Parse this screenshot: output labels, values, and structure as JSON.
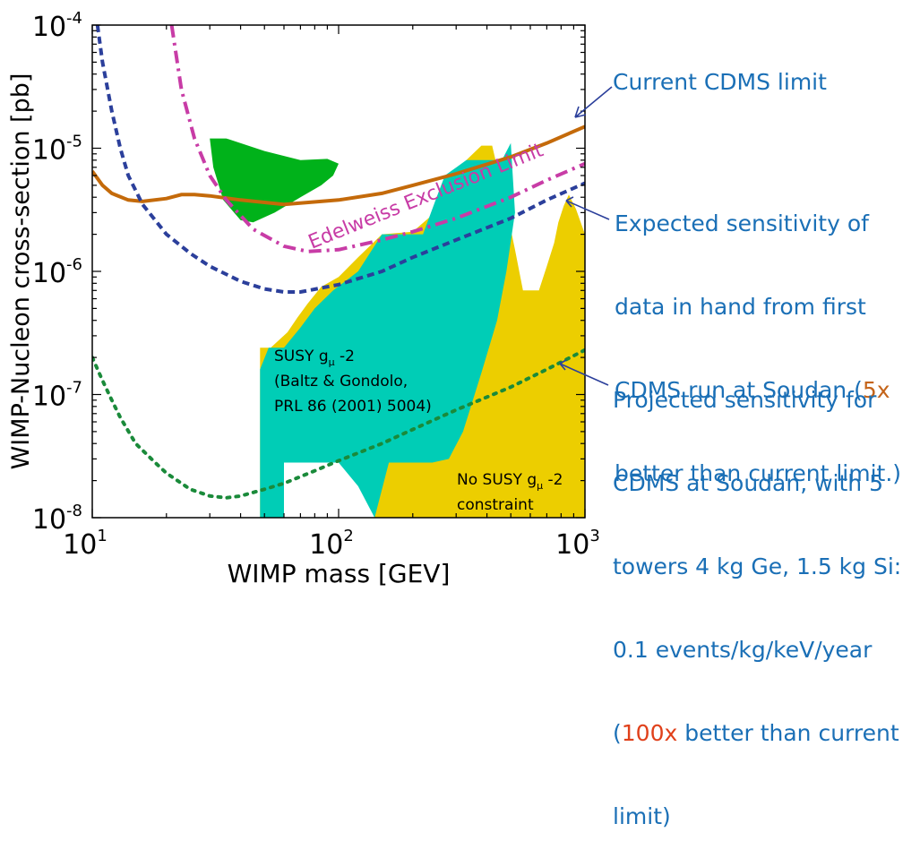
{
  "chart_data": {
    "type": "line",
    "xlabel": "WIMP mass [GEV]",
    "ylabel": "WIMP-Nucleon cross-section [pb]",
    "x_scale": "log",
    "y_scale": "log",
    "xlim": [
      10,
      1000
    ],
    "ylim": [
      1e-08,
      0.0001
    ],
    "x_ticks": [
      {
        "value": 10,
        "base": "10",
        "exp": "1"
      },
      {
        "value": 100,
        "base": "10",
        "exp": "2"
      },
      {
        "value": 1000,
        "base": "10",
        "exp": "3"
      }
    ],
    "y_ticks": [
      {
        "value": 1e-08,
        "base": "10",
        "exp": "-8"
      },
      {
        "value": 1e-07,
        "base": "10",
        "exp": "-7"
      },
      {
        "value": 1e-06,
        "base": "10",
        "exp": "-6"
      },
      {
        "value": 1e-05,
        "base": "10",
        "exp": "-5"
      },
      {
        "value": 0.0001,
        "base": "10",
        "exp": "-4"
      }
    ],
    "grid": false,
    "series": [
      {
        "style": "solid",
        "color": "#c46a0a",
        "x": [
          10,
          11,
          12,
          14,
          16,
          20,
          23,
          26,
          30,
          40,
          60,
          100,
          150,
          200,
          300,
          500,
          700,
          1000
        ],
        "y": [
          6.5e-06,
          5e-06,
          4.3e-06,
          3.8e-06,
          3.7e-06,
          3.9e-06,
          4.2e-06,
          4.2e-06,
          4.1e-06,
          3.8e-06,
          3.5e-06,
          3.8e-06,
          4.3e-06,
          5e-06,
          6.2e-06,
          8.5e-06,
          1.1e-05,
          1.5e-05
        ]
      },
      {
        "style": "dashdot",
        "color": "#c83ca6",
        "x": [
          21,
          23,
          26,
          30,
          35,
          45,
          60,
          75,
          100,
          150,
          200,
          300,
          500,
          700,
          1000
        ],
        "y": [
          0.0001,
          3e-05,
          1.2e-05,
          6e-06,
          3.8e-06,
          2.2e-06,
          1.6e-06,
          1.45e-06,
          1.5e-06,
          1.8e-06,
          2.1e-06,
          2.7e-06,
          4e-06,
          5.5e-06,
          7.5e-06
        ]
      },
      {
        "style": "dashed",
        "color": "#2b3f9b",
        "x": [
          10.5,
          11,
          12,
          13,
          14,
          16,
          20,
          25,
          30,
          40,
          50,
          60,
          70,
          100,
          150,
          200,
          300,
          500,
          700,
          1000
        ],
        "y": [
          0.0001,
          5e-05,
          2e-05,
          1e-05,
          6e-06,
          3.5e-06,
          2e-06,
          1.4e-06,
          1.1e-06,
          8.3e-07,
          7.2e-07,
          6.8e-07,
          6.8e-07,
          7.8e-07,
          1e-06,
          1.3e-06,
          1.8e-06,
          2.7e-06,
          3.8e-06,
          5.2e-06
        ]
      },
      {
        "style": "dotted",
        "color": "#1a8a3a",
        "x": [
          10,
          11,
          12,
          13,
          15,
          18,
          20,
          25,
          30,
          35,
          40,
          50,
          60,
          80,
          100,
          150,
          200,
          300,
          500,
          700,
          1000
        ],
        "y": [
          2e-07,
          1.3e-07,
          9e-08,
          6.5e-08,
          4e-08,
          2.8e-08,
          2.3e-08,
          1.7e-08,
          1.5e-08,
          1.45e-08,
          1.5e-08,
          1.7e-08,
          1.9e-08,
          2.4e-08,
          2.9e-08,
          4e-08,
          5.2e-08,
          7.5e-08,
          1.15e-07,
          1.6e-07,
          2.3e-07
        ]
      }
    ],
    "regions": [
      {
        "color": "#ecce00",
        "x": [
          48,
          53,
          62,
          68,
          75,
          85,
          100,
          120,
          150,
          200,
          260,
          330,
          380,
          420,
          470,
          520,
          560,
          600,
          650,
          700,
          750,
          780,
          820,
          860,
          920,
          1000,
          1000,
          140,
          140,
          60,
          60,
          48
        ],
        "y": [
          2.4e-07,
          2.4e-07,
          3.2e-07,
          4.2e-07,
          5.5e-07,
          7.5e-07,
          9e-07,
          1.3e-06,
          2e-06,
          2.1e-06,
          3.3e-06,
          8e-06,
          1.05e-05,
          1.05e-05,
          4e-06,
          1.5e-06,
          7e-07,
          7e-07,
          7e-07,
          1.1e-06,
          1.7e-06,
          2.5e-06,
          3.4e-06,
          4.2e-06,
          3.2e-06,
          2e-06,
          1e-08,
          1e-08,
          2.8e-08,
          2.8e-08,
          1e-08,
          1e-08
        ]
      },
      {
        "color": "#00cdb6",
        "x": [
          48,
          52,
          60,
          70,
          80,
          95,
          120,
          150,
          180,
          220,
          250,
          270,
          330,
          380,
          460,
          500,
          520,
          480,
          440,
          380,
          320,
          280,
          240,
          200,
          160,
          140,
          120,
          100,
          80,
          60,
          60,
          48
        ],
        "y": [
          1.6e-07,
          2.4e-07,
          2.4e-07,
          3.5e-07,
          5e-07,
          7e-07,
          1e-06,
          2e-06,
          2e-06,
          2e-06,
          4e-06,
          6e-06,
          8e-06,
          8e-06,
          8e-06,
          1.1e-05,
          3e-06,
          1e-06,
          4e-07,
          1.5e-07,
          5e-08,
          3e-08,
          2.8e-08,
          2.8e-08,
          2.8e-08,
          1e-08,
          1.8e-08,
          2.8e-08,
          2.8e-08,
          2.8e-08,
          1e-08,
          1e-08
        ]
      },
      {
        "color": "#00b21a",
        "x": [
          30,
          35,
          50,
          70,
          90,
          100,
          95,
          85,
          70,
          55,
          45,
          40,
          34,
          31,
          30
        ],
        "y": [
          1.2e-05,
          1.2e-05,
          9.5e-06,
          8e-06,
          8.2e-06,
          7.5e-06,
          6e-06,
          5e-06,
          4e-06,
          3e-06,
          2.5e-06,
          2.6e-06,
          3.8e-06,
          7e-06,
          1.2e-05
        ]
      }
    ],
    "annotations": [
      {
        "text": "Edelweiss Exclusion Limit",
        "color": "#c83ca6"
      }
    ],
    "susy_label": {
      "lines": [
        "(Baltz & Gondolo,",
        "PRL 86 (2001) 5004)"
      ],
      "head": "SUSY g",
      "sub": "μ",
      "tail": " -2"
    },
    "nosusy_label": {
      "head": "No SUSY g",
      "sub": "μ",
      "tail": " -2",
      "line2": "constraint"
    }
  },
  "annotations_right": {
    "color": "#1a6fb6",
    "highlight_a": "#c4641a",
    "highlight_b": "#e0401a",
    "current": "Current CDMS limit",
    "expected_1": "Expected sensitivity of",
    "expected_2": "data in hand from first",
    "expected_3a": "CDMS run at Soudan (",
    "expected_3b": "5x",
    "expected_4": "better than current limit.)",
    "projected_1": "Projected sensitivity for",
    "projected_2": "CDMS at Soudan, with 5",
    "projected_3": "towers 4 kg Ge, 1.5 kg Si:",
    "projected_4": "0.1 events/kg/keV/year",
    "projected_5a": "(",
    "projected_5b": "100x",
    "projected_5c": " better than current",
    "projected_6": "limit)"
  }
}
